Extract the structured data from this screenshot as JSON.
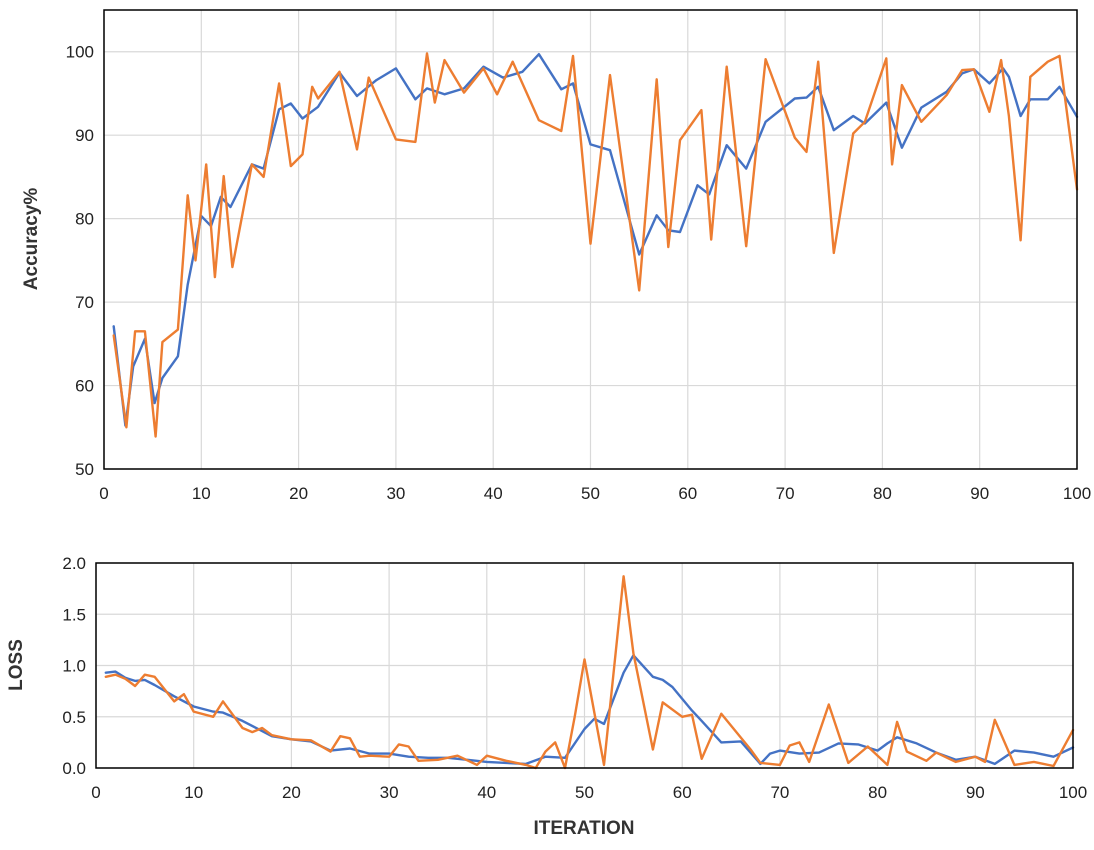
{
  "chart_data": [
    {
      "type": "line",
      "ylabel": "Accuracy%",
      "xlabel": "",
      "xlim": [
        0,
        100
      ],
      "ylim": [
        50,
        105
      ],
      "xticks": [
        0,
        10,
        20,
        30,
        40,
        50,
        60,
        70,
        80,
        90,
        100
      ],
      "yticks": [
        50,
        60,
        70,
        80,
        90,
        100
      ],
      "grid": true,
      "legend": "none",
      "colors": [
        "#4472C4",
        "#ED7D31"
      ],
      "series": [
        {
          "x": [
            1,
            2.2,
            3,
            4.2,
            5.2,
            6,
            7.6,
            8.6,
            10,
            11,
            12,
            13,
            15.2,
            16.4,
            18,
            19.2,
            20.4,
            22,
            24.2,
            26,
            28,
            30,
            32,
            33.2,
            35,
            37,
            39,
            41,
            43,
            44.7,
            47,
            48.2,
            50,
            52,
            55,
            56.8,
            58,
            59.2,
            61,
            62.2,
            64,
            66,
            68,
            71,
            72.2,
            73.4,
            75,
            77,
            78.2,
            80.4,
            82,
            84,
            86.6,
            88.2,
            89.4,
            91,
            92.4,
            93,
            94.2,
            95.2,
            97,
            98.2,
            100
          ],
          "values": [
            67.1,
            55.2,
            62.3,
            65.6,
            57.9,
            60.9,
            63.5,
            72.1,
            80.3,
            79.1,
            82.6,
            81.4,
            86.5,
            86.0,
            93.1,
            93.8,
            92.0,
            93.4,
            97.5,
            94.7,
            96.6,
            98.0,
            94.3,
            95.6,
            94.9,
            95.6,
            98.2,
            96.9,
            97.6,
            99.7,
            95.5,
            96.2,
            88.9,
            88.2,
            75.7,
            80.4,
            78.6,
            78.4,
            84.0,
            82.9,
            88.8,
            86.0,
            91.6,
            94.4,
            94.5,
            95.8,
            90.6,
            92.3,
            91.4,
            93.9,
            88.5,
            93.3,
            95.2,
            97.4,
            97.9,
            96.2,
            98.0,
            97.0,
            92.3,
            94.3,
            94.3,
            95.8,
            92.2
          ]
        },
        {
          "x": [
            1,
            2.3,
            3.2,
            4.2,
            5.3,
            6,
            7.6,
            8.6,
            9.4,
            10.5,
            11.4,
            12.3,
            13.2,
            15.2,
            16.4,
            18,
            19.2,
            20.4,
            21.4,
            22,
            24.2,
            26,
            27.2,
            30,
            32,
            33.2,
            34,
            35,
            37,
            39,
            40.4,
            42,
            44.7,
            47,
            48.2,
            50,
            52,
            55,
            56.8,
            58,
            59.2,
            61.4,
            62.4,
            64,
            66,
            68,
            71,
            72.2,
            73.4,
            75,
            77,
            78.2,
            80.4,
            81,
            82,
            84,
            86.6,
            88.2,
            89.4,
            91,
            92.2,
            93,
            94.2,
            95.2,
            97,
            98.2,
            100
          ],
          "values": [
            66.0,
            55.0,
            66.5,
            66.5,
            53.9,
            65.2,
            66.7,
            82.8,
            75.0,
            86.5,
            73.0,
            85.1,
            74.2,
            86.5,
            85.0,
            96.2,
            86.3,
            87.7,
            95.8,
            94.4,
            97.6,
            88.3,
            96.9,
            89.5,
            89.2,
            99.8,
            93.9,
            99.0,
            95.1,
            98.0,
            94.9,
            98.8,
            91.8,
            90.5,
            99.5,
            77.0,
            97.2,
            71.4,
            96.7,
            76.6,
            89.4,
            93.0,
            77.5,
            98.2,
            76.7,
            99.1,
            89.7,
            88.0,
            98.8,
            75.9,
            90.2,
            91.6,
            99.2,
            86.5,
            96.0,
            91.6,
            94.8,
            97.8,
            97.9,
            92.8,
            99.0,
            92.3,
            77.4,
            97.0,
            98.8,
            99.5,
            83.5
          ]
        }
      ]
    },
    {
      "type": "line",
      "ylabel": "LOSS",
      "xlabel": "ITERATION",
      "xlim": [
        0,
        100
      ],
      "ylim": [
        0,
        2.0
      ],
      "xticks": [
        0,
        10,
        20,
        30,
        40,
        50,
        60,
        70,
        80,
        90,
        100
      ],
      "yticks": [
        "0.0",
        "0.5",
        "1.0",
        "1.5",
        "2.0"
      ],
      "grid": true,
      "legend": "none",
      "colors": [
        "#4472C4",
        "#ED7D31"
      ],
      "series": [
        {
          "x": [
            1,
            2,
            3,
            4,
            5,
            6,
            8,
            10,
            12,
            13,
            15,
            17,
            18,
            20,
            22,
            24,
            26,
            28,
            30,
            32,
            34,
            36,
            38,
            40,
            42,
            44,
            46,
            48,
            50,
            51,
            52,
            54,
            55,
            57,
            58,
            59,
            61,
            62,
            64,
            66,
            68,
            69,
            70,
            72,
            74,
            76,
            78,
            80,
            81,
            82,
            84,
            86,
            88,
            90,
            92,
            94,
            96,
            98,
            100
          ],
          "values": [
            0.93,
            0.94,
            0.88,
            0.85,
            0.86,
            0.81,
            0.7,
            0.6,
            0.55,
            0.54,
            0.46,
            0.36,
            0.31,
            0.28,
            0.26,
            0.17,
            0.19,
            0.14,
            0.14,
            0.11,
            0.1,
            0.1,
            0.08,
            0.06,
            0.05,
            0.04,
            0.11,
            0.1,
            0.38,
            0.48,
            0.43,
            0.93,
            1.1,
            0.89,
            0.86,
            0.79,
            0.56,
            0.46,
            0.25,
            0.26,
            0.04,
            0.14,
            0.17,
            0.14,
            0.15,
            0.24,
            0.23,
            0.17,
            0.24,
            0.3,
            0.24,
            0.15,
            0.08,
            0.11,
            0.04,
            0.17,
            0.15,
            0.11,
            0.2
          ]
        },
        {
          "x": [
            1,
            2,
            3,
            4,
            5,
            6,
            8,
            9,
            10,
            12,
            13,
            15,
            16,
            17,
            18,
            20,
            22,
            24,
            25,
            26,
            27,
            28,
            30,
            31,
            32,
            33,
            35,
            37,
            39,
            40,
            42,
            44,
            45,
            46,
            47,
            48,
            49,
            50,
            52,
            54,
            55,
            57,
            58,
            60,
            61,
            62,
            64,
            67,
            68,
            70,
            71,
            72,
            73,
            75,
            77,
            79,
            81,
            82,
            83,
            85,
            86,
            88,
            90,
            91,
            92,
            94,
            96,
            98,
            100
          ],
          "values": [
            0.89,
            0.91,
            0.87,
            0.8,
            0.91,
            0.89,
            0.65,
            0.72,
            0.55,
            0.5,
            0.65,
            0.39,
            0.35,
            0.39,
            0.32,
            0.28,
            0.27,
            0.16,
            0.31,
            0.29,
            0.11,
            0.12,
            0.11,
            0.23,
            0.21,
            0.07,
            0.08,
            0.12,
            0.03,
            0.12,
            0.07,
            0.03,
            0.0,
            0.16,
            0.25,
            0.0,
            0.5,
            1.06,
            0.03,
            1.87,
            1.12,
            0.18,
            0.64,
            0.5,
            0.52,
            0.09,
            0.53,
            0.18,
            0.05,
            0.03,
            0.22,
            0.25,
            0.06,
            0.62,
            0.05,
            0.21,
            0.03,
            0.45,
            0.16,
            0.07,
            0.15,
            0.06,
            0.11,
            0.06,
            0.47,
            0.03,
            0.06,
            0.02,
            0.37
          ]
        }
      ]
    }
  ]
}
